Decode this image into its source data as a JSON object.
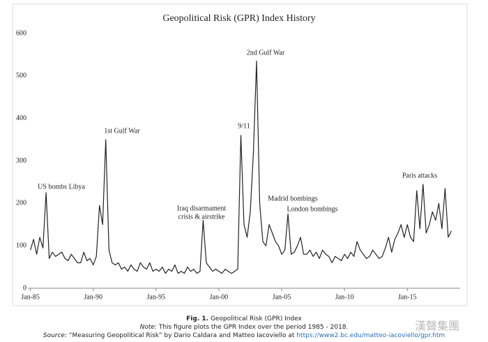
{
  "chart_data": {
    "type": "line",
    "title": "Geopolitical Risk (GPR) Index History",
    "x": [
      1985,
      1985.25,
      1985.5,
      1985.75,
      1986,
      1986.25,
      1986.5,
      1986.75,
      1987,
      1987.25,
      1987.5,
      1987.75,
      1988,
      1988.25,
      1988.5,
      1988.75,
      1989,
      1989.25,
      1989.5,
      1989.75,
      1990,
      1990.25,
      1990.5,
      1990.75,
      1991,
      1991.25,
      1991.5,
      1991.75,
      1992,
      1992.25,
      1992.5,
      1992.75,
      1993,
      1993.25,
      1993.5,
      1993.75,
      1994,
      1994.25,
      1994.5,
      1994.75,
      1995,
      1995.25,
      1995.5,
      1995.75,
      1996,
      1996.25,
      1996.5,
      1996.75,
      1997,
      1997.25,
      1997.5,
      1997.75,
      1998,
      1998.25,
      1998.5,
      1998.75,
      1999,
      1999.25,
      1999.5,
      1999.75,
      2000,
      2000.25,
      2000.5,
      2000.75,
      2001,
      2001.25,
      2001.5,
      2001.75,
      2002,
      2002.25,
      2002.5,
      2002.75,
      2003,
      2003.25,
      2003.5,
      2003.75,
      2004,
      2004.25,
      2004.5,
      2004.75,
      2005,
      2005.25,
      2005.5,
      2005.75,
      2006,
      2006.25,
      2006.5,
      2006.75,
      2007,
      2007.25,
      2007.5,
      2007.75,
      2008,
      2008.25,
      2008.5,
      2008.75,
      2009,
      2009.25,
      2009.5,
      2009.75,
      2010,
      2010.25,
      2010.5,
      2010.75,
      2011,
      2011.25,
      2011.5,
      2011.75,
      2012,
      2012.25,
      2012.5,
      2012.75,
      2013,
      2013.25,
      2013.5,
      2013.75,
      2014,
      2014.25,
      2014.5,
      2014.75,
      2015,
      2015.25,
      2015.5,
      2015.75,
      2016,
      2016.25,
      2016.5,
      2016.75,
      2017,
      2017.25,
      2017.5,
      2017.75,
      2018,
      2018.25,
      2018.5
    ],
    "series": [
      {
        "name": "GPR Index",
        "color": "#222222",
        "values": [
          90,
          115,
          80,
          120,
          95,
          225,
          70,
          85,
          75,
          80,
          85,
          70,
          65,
          80,
          70,
          60,
          60,
          85,
          65,
          70,
          55,
          75,
          195,
          150,
          350,
          90,
          60,
          55,
          60,
          45,
          50,
          40,
          55,
          45,
          40,
          60,
          50,
          45,
          60,
          40,
          45,
          40,
          50,
          35,
          45,
          40,
          55,
          35,
          40,
          35,
          50,
          40,
          45,
          35,
          40,
          160,
          60,
          50,
          40,
          45,
          40,
          35,
          45,
          40,
          35,
          40,
          45,
          360,
          150,
          120,
          180,
          320,
          535,
          200,
          110,
          100,
          150,
          130,
          110,
          100,
          80,
          90,
          175,
          80,
          85,
          100,
          120,
          80,
          80,
          90,
          75,
          85,
          70,
          90,
          80,
          75,
          60,
          75,
          70,
          65,
          80,
          70,
          85,
          75,
          110,
          90,
          80,
          70,
          75,
          90,
          80,
          70,
          75,
          95,
          120,
          85,
          115,
          130,
          150,
          120,
          150,
          120,
          110,
          230,
          140,
          245,
          130,
          150,
          180,
          160,
          200,
          140,
          235,
          120,
          135
        ]
      }
    ],
    "xlim": [
      1984.8,
      2019.2
    ],
    "ylim": [
      0,
      600
    ],
    "xticks": [
      {
        "value": 1985,
        "label": "Jan-85"
      },
      {
        "value": 1990,
        "label": "Jan-90"
      },
      {
        "value": 1995,
        "label": "Jan-95"
      },
      {
        "value": 2000,
        "label": "Jan-00"
      },
      {
        "value": 2005,
        "label": "Jan-05"
      },
      {
        "value": 2010,
        "label": "Jan-10"
      },
      {
        "value": 2015,
        "label": "Jan-15"
      }
    ],
    "yticks": [
      0,
      100,
      200,
      300,
      400,
      500,
      600
    ],
    "grid": false,
    "annotations": [
      "US bombs Libya",
      "1st Gulf War",
      [
        "Iraq disarmament",
        "crisis & airstrike"
      ],
      "9/11",
      "2nd Gulf War",
      "Madrid bombings",
      "London bombings",
      "Paris attacks"
    ]
  },
  "caption": {
    "figure": "Fig. 1.",
    "title": "Geopolitical Risk (GPR) Index",
    "note_label": "Note:",
    "note": "This figure plots the GPR Index over the period 1985 - 2018.",
    "source_label": "Source:",
    "source": "“Measuring Geopolitical Risk” by Dario Caldara and Matteo Iacoviello at",
    "url": "https://www2.bc.edu/matteo-iacoviello/gpr.htm"
  },
  "watermark": "漢聲集團"
}
